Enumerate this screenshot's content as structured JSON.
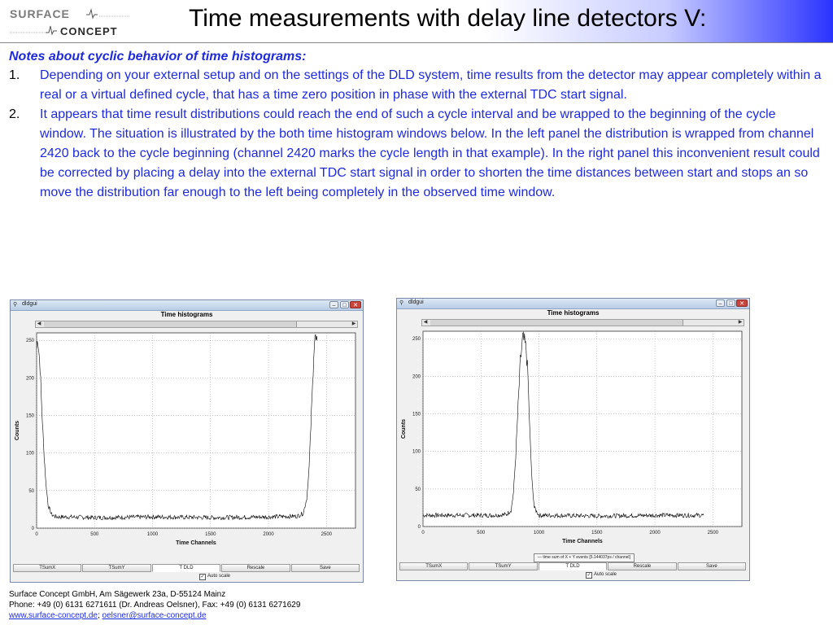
{
  "header": {
    "logo_line1": "SURFACE",
    "logo_line2": "CONCEPT",
    "title": "Time measurements with delay line detectors V:"
  },
  "notes": {
    "heading": "Notes about cyclic behavior of time histograms:",
    "items": [
      {
        "num": "1.",
        "text": "Depending on your external setup and on the settings of the DLD system, time results from the detector may appear completely within a real or a virtual defined cycle, that has a time zero position in phase with the external TDC start signal."
      },
      {
        "num": "2.",
        "text": "It appears that time result distributions could reach the end of such a cycle interval and be wrapped to the beginning of the cycle window. The situation is illustrated by the both time histogram windows below. In the left panel the distribution is wrapped from channel 2420 back to the cycle beginning (channel 2420 marks the cycle length in that example). In the right panel this inconvenient result could be corrected by placing a delay into the external TDC start signal in order to shorten the time distances between start and stops an so move the distribution far enough to the left being completely in the observed time window."
      }
    ]
  },
  "windows": [
    {
      "app_title": "dldgui",
      "plot_title": "Time histograms",
      "ylabel": "Counts",
      "xlabel": "Time Channels",
      "xticks": [
        "0",
        "500",
        "1000",
        "1500",
        "2000",
        "2500"
      ],
      "yticks": [
        "0",
        "50",
        "100",
        "150",
        "200",
        "250"
      ],
      "buttons": [
        "TSumX",
        "TSumY",
        "T DLD",
        "Rescale",
        "Save"
      ],
      "active_button": "T DLD",
      "autoscale_label": "Auto scale",
      "legend": ""
    },
    {
      "app_title": "dldgui",
      "plot_title": "Time histograms",
      "ylabel": "Counts",
      "xlabel": "Time Channels",
      "xticks": [
        "0",
        "500",
        "1000",
        "1500",
        "2000",
        "2500"
      ],
      "yticks": [
        "0",
        "50",
        "100",
        "150",
        "200",
        "250"
      ],
      "buttons": [
        "TSumX",
        "TSumY",
        "T DLD",
        "Rescale",
        "Save"
      ],
      "active_button": "T DLD",
      "autoscale_label": "Auto scale",
      "legend": "time sum of X + Y events [5.144037ps / channel]"
    }
  ],
  "chart_data": [
    {
      "type": "line",
      "title": "Time histograms",
      "xlabel": "Time Channels",
      "ylabel": "Counts",
      "xlim": [
        0,
        2750
      ],
      "ylim": [
        0,
        260
      ],
      "xticks": [
        0,
        500,
        1000,
        1500,
        2000,
        2500
      ],
      "yticks": [
        0,
        50,
        100,
        150,
        200,
        250
      ],
      "grid": true,
      "series": [
        {
          "x": [
            0,
            10,
            20,
            30,
            40,
            60,
            80,
            100,
            130,
            170,
            250,
            500,
            1000,
            1500,
            2000,
            2250,
            2300,
            2330,
            2350,
            2365,
            2380,
            2390,
            2400,
            2410,
            2420
          ],
          "y": [
            240,
            255,
            235,
            215,
            175,
            110,
            60,
            30,
            18,
            15,
            15,
            14,
            15,
            14,
            15,
            16,
            20,
            40,
            80,
            135,
            190,
            235,
            255,
            248,
            250
          ]
        }
      ]
    },
    {
      "type": "line",
      "title": "Time histograms",
      "xlabel": "Time Channels",
      "ylabel": "Counts",
      "xlim": [
        0,
        2750
      ],
      "ylim": [
        0,
        260
      ],
      "xticks": [
        0,
        500,
        1000,
        1500,
        2000,
        2500
      ],
      "yticks": [
        0,
        50,
        100,
        150,
        200,
        250
      ],
      "grid": true,
      "series": [
        {
          "name": "time sum of X + Y events [5.144037ps / channel]",
          "x": [
            0,
            300,
            600,
            720,
            760,
            780,
            800,
            820,
            840,
            860,
            875,
            890,
            905,
            920,
            940,
            960,
            1000,
            1500,
            2000,
            2420
          ],
          "y": [
            15,
            15,
            15,
            16,
            22,
            45,
            95,
            160,
            220,
            250,
            245,
            235,
            200,
            130,
            60,
            25,
            15,
            14,
            15,
            15
          ]
        }
      ]
    }
  ],
  "footer": {
    "line1": "Surface Concept GmbH, Am Sägewerk 23a, D-55124 Mainz",
    "line2": "Phone: +49 (0) 6131 6271611 (Dr. Andreas Oelsner), Fax: +49 (0) 6131 6271629",
    "link1": "www.surface-concept.de",
    "separator": "; ",
    "link2": "oelsner@surface-concept.de"
  },
  "colors": {
    "accent": "#1f2bdb",
    "header_gradient_end": "#2a33ff"
  }
}
